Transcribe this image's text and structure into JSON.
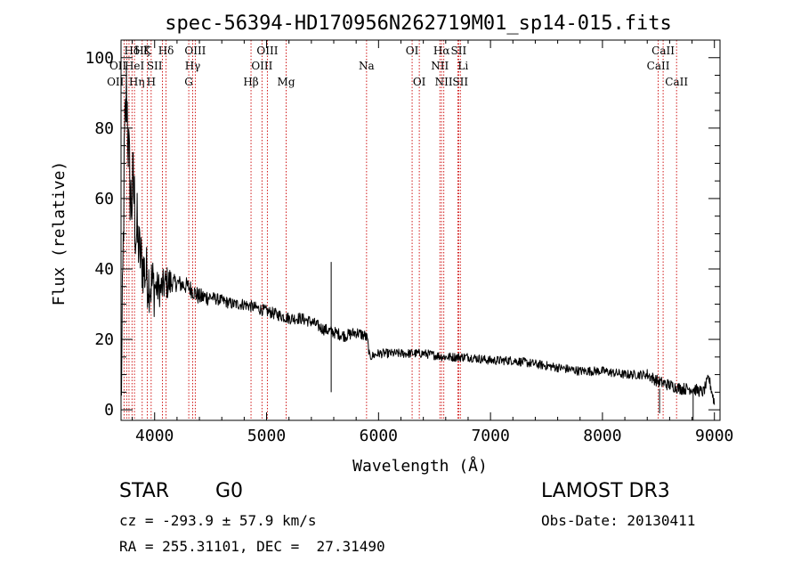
{
  "chart_data": {
    "type": "line",
    "title": "spec-56394-HD170956N262719M01_sp14-015.fits",
    "xlabel": "Wavelength (Å)",
    "ylabel": "Flux (relative)",
    "xlim": [
      3700,
      9050
    ],
    "ylim": [
      -3,
      105
    ],
    "xticks": [
      4000,
      5000,
      6000,
      7000,
      8000,
      9000
    ],
    "yticks": [
      0,
      20,
      40,
      60,
      80,
      100
    ],
    "grid": false,
    "spectrum_anchors": {
      "x": [
        3700,
        3710,
        3730,
        3750,
        3770,
        3790,
        3810,
        3830,
        3850,
        3870,
        3900,
        3930,
        3960,
        4000,
        4050,
        4100,
        4200,
        4300,
        4400,
        4500,
        4600,
        4700,
        4800,
        4900,
        5000,
        5100,
        5200,
        5300,
        5400,
        5500,
        5600,
        5700,
        5800,
        5880,
        5900,
        5920,
        6000,
        6200,
        6400,
        6600,
        6800,
        7000,
        7200,
        7400,
        7600,
        7800,
        8000,
        8200,
        8400,
        8500,
        8600,
        8700,
        8800,
        8900,
        8950,
        9000
      ],
      "y": [
        2,
        20,
        72,
        92,
        70,
        58,
        64,
        52,
        48,
        44,
        40,
        38,
        36,
        35,
        34,
        36,
        36,
        35,
        32,
        32,
        31,
        30,
        30,
        29,
        28,
        27,
        26,
        26,
        25,
        23,
        22,
        21,
        22,
        21,
        20,
        15,
        16,
        16,
        16,
        15,
        15,
        14,
        14,
        13,
        12,
        11,
        11,
        10,
        10,
        8,
        7,
        6,
        6,
        5,
        9,
        2
      ]
    },
    "spike_features": [
      {
        "x": 5577,
        "y_high": 42,
        "y_low": 5
      },
      {
        "x": 8510,
        "y_high": 6,
        "y_low": -1
      },
      {
        "x": 8810,
        "y_high": 5,
        "y_low": -3
      }
    ],
    "spectral_lines": [
      {
        "wavelength": 3727,
        "label": "OII",
        "row": 3,
        "align": "end"
      },
      {
        "wavelength": 3750,
        "label": "OII",
        "row": 2,
        "align": "end"
      },
      {
        "wavelength": 3771,
        "label": "Hη",
        "row": 3,
        "align": "start"
      },
      {
        "wavelength": 3798,
        "label": "Hδ",
        "row": 1,
        "align": "middle"
      },
      {
        "wavelength": 3820,
        "label": "HeI",
        "row": 2,
        "align": "middle"
      },
      {
        "wavelength": 3889,
        "label": "Hζ",
        "row": 1,
        "align": "middle"
      },
      {
        "wavelength": 3934,
        "label": "K",
        "row": 1,
        "align": "middle"
      },
      {
        "wavelength": 3969,
        "label": "H",
        "row": 3,
        "align": "middle"
      },
      {
        "wavelength": 4070,
        "label": "SII",
        "row": 2,
        "align": "end"
      },
      {
        "wavelength": 4102,
        "label": "Hδ",
        "row": 1,
        "align": "middle"
      },
      {
        "wavelength": 4305,
        "label": "G",
        "row": 3,
        "align": "middle"
      },
      {
        "wavelength": 4340,
        "label": "Hγ",
        "row": 2,
        "align": "middle"
      },
      {
        "wavelength": 4363,
        "label": "OIII",
        "row": 1,
        "align": "middle"
      },
      {
        "wavelength": 4861,
        "label": "Hβ",
        "row": 3,
        "align": "middle"
      },
      {
        "wavelength": 4959,
        "label": "OIII",
        "row": 2,
        "align": "middle"
      },
      {
        "wavelength": 5007,
        "label": "OIII",
        "row": 1,
        "align": "middle"
      },
      {
        "wavelength": 5175,
        "label": "Mg",
        "row": 3,
        "align": "middle"
      },
      {
        "wavelength": 5893,
        "label": "Na",
        "row": 2,
        "align": "middle"
      },
      {
        "wavelength": 6300,
        "label": "OI",
        "row": 1,
        "align": "middle"
      },
      {
        "wavelength": 6364,
        "label": "OI",
        "row": 3,
        "align": "middle"
      },
      {
        "wavelength": 6548,
        "label": "NII",
        "row": 2,
        "align": "middle"
      },
      {
        "wavelength": 6563,
        "label": "Hα",
        "row": 1,
        "align": "middle"
      },
      {
        "wavelength": 6583,
        "label": "NII",
        "row": 3,
        "align": "middle"
      },
      {
        "wavelength": 6708,
        "label": "Li",
        "row": 2,
        "align": "start"
      },
      {
        "wavelength": 6716,
        "label": "SII",
        "row": 1,
        "align": "middle"
      },
      {
        "wavelength": 6731,
        "label": "SII",
        "row": 3,
        "align": "middle"
      },
      {
        "wavelength": 8498,
        "label": "CaII",
        "row": 2,
        "align": "middle"
      },
      {
        "wavelength": 8542,
        "label": "CaII",
        "row": 1,
        "align": "middle"
      },
      {
        "wavelength": 8662,
        "label": "CaII",
        "row": 3,
        "align": "middle"
      }
    ]
  },
  "info": {
    "object_class": "STAR",
    "subclass": "G0",
    "survey": "LAMOST DR3",
    "redshift": "cz = -293.9 ± 57.9 km/s",
    "obs_date": "Obs-Date: 20130411",
    "coords": "RA = 255.31101, DEC =  27.31490"
  },
  "colors": {
    "line_marker": "#cc0000",
    "spectrum": "#000000",
    "background": "#ffffff"
  }
}
